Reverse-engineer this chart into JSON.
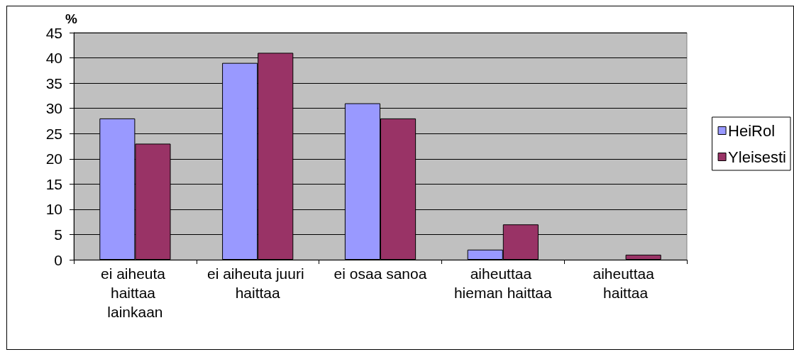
{
  "chart_data": {
    "type": "bar",
    "ylabel": "%",
    "categories": [
      "ei aiheuta haittaa lainkaan",
      "ei aiheuta juuri haittaa",
      "ei osaa sanoa",
      "aiheuttaa hieman haittaa",
      "aiheuttaa haittaa"
    ],
    "series": [
      {
        "name": "HeiRol",
        "color": "#9999ff",
        "values": [
          28,
          39,
          31,
          2,
          0
        ]
      },
      {
        "name": "Yleisesti",
        "color": "#993366",
        "values": [
          23,
          41,
          28,
          7,
          1
        ]
      }
    ],
    "ylim": [
      0,
      45
    ],
    "yticks": [
      0,
      5,
      10,
      15,
      20,
      25,
      30,
      35,
      40,
      45
    ],
    "grid": "y",
    "legend": "right"
  }
}
